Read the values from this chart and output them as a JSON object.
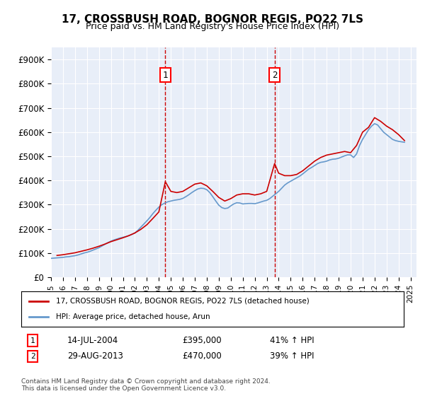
{
  "title": "17, CROSSBUSH ROAD, BOGNOR REGIS, PO22 7LS",
  "subtitle": "Price paid vs. HM Land Registry's House Price Index (HPI)",
  "ylabel_ticks": [
    "£0",
    "£100K",
    "£200K",
    "£300K",
    "£400K",
    "£500K",
    "£600K",
    "£700K",
    "£800K",
    "£900K"
  ],
  "ytick_values": [
    0,
    100000,
    200000,
    300000,
    400000,
    500000,
    600000,
    700000,
    800000,
    900000
  ],
  "ylim": [
    0,
    950000
  ],
  "xlim_start": 1995.0,
  "xlim_end": 2025.5,
  "xtick_years": [
    1995,
    1996,
    1997,
    1998,
    1999,
    2000,
    2001,
    2002,
    2003,
    2004,
    2005,
    2006,
    2007,
    2008,
    2009,
    2010,
    2011,
    2012,
    2013,
    2014,
    2015,
    2016,
    2017,
    2018,
    2019,
    2020,
    2021,
    2022,
    2023,
    2024,
    2025
  ],
  "background_color": "#ffffff",
  "plot_bg_color": "#e8eef8",
  "grid_color": "#ffffff",
  "hpi_color": "#6699cc",
  "sale_color": "#cc0000",
  "marker1_x": 2004.54,
  "marker1_y": 395000,
  "marker2_x": 2013.66,
  "marker2_y": 470000,
  "marker1_label": "1",
  "marker2_label": "2",
  "marker1_date": "14-JUL-2004",
  "marker1_price": "£395,000",
  "marker1_hpi": "41% ↑ HPI",
  "marker2_date": "29-AUG-2013",
  "marker2_price": "£470,000",
  "marker2_hpi": "39% ↑ HPI",
  "legend_sale": "17, CROSSBUSH ROAD, BOGNOR REGIS, PO22 7LS (detached house)",
  "legend_hpi": "HPI: Average price, detached house, Arun",
  "footer": "Contains HM Land Registry data © Crown copyright and database right 2024.\nThis data is licensed under the Open Government Licence v3.0.",
  "hpi_data_x": [
    1995.0,
    1995.25,
    1995.5,
    1995.75,
    1996.0,
    1996.25,
    1996.5,
    1996.75,
    1997.0,
    1997.25,
    1997.5,
    1997.75,
    1998.0,
    1998.25,
    1998.5,
    1998.75,
    1999.0,
    1999.25,
    1999.5,
    1999.75,
    2000.0,
    2000.25,
    2000.5,
    2000.75,
    2001.0,
    2001.25,
    2001.5,
    2001.75,
    2002.0,
    2002.25,
    2002.5,
    2002.75,
    2003.0,
    2003.25,
    2003.5,
    2003.75,
    2004.0,
    2004.25,
    2004.5,
    2004.75,
    2005.0,
    2005.25,
    2005.5,
    2005.75,
    2006.0,
    2006.25,
    2006.5,
    2006.75,
    2007.0,
    2007.25,
    2007.5,
    2007.75,
    2008.0,
    2008.25,
    2008.5,
    2008.75,
    2009.0,
    2009.25,
    2009.5,
    2009.75,
    2010.0,
    2010.25,
    2010.5,
    2010.75,
    2011.0,
    2011.25,
    2011.5,
    2011.75,
    2012.0,
    2012.25,
    2012.5,
    2012.75,
    2013.0,
    2013.25,
    2013.5,
    2013.75,
    2014.0,
    2014.25,
    2014.5,
    2014.75,
    2015.0,
    2015.25,
    2015.5,
    2015.75,
    2016.0,
    2016.25,
    2016.5,
    2016.75,
    2017.0,
    2017.25,
    2017.5,
    2017.75,
    2018.0,
    2018.25,
    2018.5,
    2018.75,
    2019.0,
    2019.25,
    2019.5,
    2019.75,
    2020.0,
    2020.25,
    2020.5,
    2020.75,
    2021.0,
    2021.25,
    2021.5,
    2021.75,
    2022.0,
    2022.25,
    2022.5,
    2022.75,
    2023.0,
    2023.25,
    2023.5,
    2023.75,
    2024.0,
    2024.25,
    2024.5
  ],
  "hpi_data_y": [
    78000,
    79000,
    80000,
    81000,
    82000,
    84000,
    85000,
    87000,
    89000,
    92000,
    96000,
    100000,
    103000,
    107000,
    112000,
    117000,
    122000,
    129000,
    136000,
    143000,
    149000,
    154000,
    158000,
    162000,
    165000,
    168000,
    172000,
    177000,
    183000,
    194000,
    207000,
    220000,
    233000,
    247000,
    263000,
    277000,
    290000,
    300000,
    307000,
    312000,
    315000,
    318000,
    320000,
    322000,
    326000,
    333000,
    341000,
    350000,
    358000,
    365000,
    368000,
    367000,
    362000,
    350000,
    333000,
    315000,
    298000,
    288000,
    284000,
    286000,
    295000,
    303000,
    308000,
    307000,
    303000,
    304000,
    305000,
    305000,
    304000,
    307000,
    311000,
    315000,
    318000,
    325000,
    335000,
    345000,
    355000,
    368000,
    381000,
    390000,
    397000,
    404000,
    411000,
    418000,
    427000,
    437000,
    447000,
    454000,
    462000,
    470000,
    475000,
    477000,
    480000,
    485000,
    488000,
    489000,
    492000,
    497000,
    502000,
    506000,
    506000,
    495000,
    510000,
    545000,
    570000,
    590000,
    610000,
    625000,
    635000,
    630000,
    615000,
    600000,
    590000,
    580000,
    570000,
    565000,
    562000,
    560000,
    558000
  ],
  "sale_data_x": [
    1995.5,
    1996.0,
    1996.5,
    1997.0,
    1997.5,
    1998.0,
    1998.5,
    1999.0,
    1999.5,
    2000.0,
    2000.5,
    2001.0,
    2001.5,
    2002.0,
    2002.5,
    2003.0,
    2003.5,
    2004.0,
    2004.54,
    2005.0,
    2005.5,
    2006.0,
    2006.5,
    2007.0,
    2007.5,
    2008.0,
    2008.5,
    2009.0,
    2009.5,
    2010.0,
    2010.5,
    2011.0,
    2011.5,
    2012.0,
    2012.5,
    2013.0,
    2013.66,
    2014.0,
    2014.5,
    2015.0,
    2015.5,
    2016.0,
    2016.5,
    2017.0,
    2017.5,
    2018.0,
    2018.5,
    2019.0,
    2019.5,
    2020.0,
    2020.5,
    2021.0,
    2021.5,
    2022.0,
    2022.5,
    2023.0,
    2023.5,
    2024.0,
    2024.5
  ],
  "sale_data_y": [
    90000,
    93000,
    97000,
    101000,
    107000,
    113000,
    120000,
    128000,
    137000,
    147000,
    155000,
    163000,
    172000,
    183000,
    198000,
    217000,
    243000,
    270000,
    395000,
    355000,
    350000,
    355000,
    370000,
    385000,
    390000,
    378000,
    355000,
    330000,
    315000,
    325000,
    340000,
    345000,
    345000,
    340000,
    345000,
    355000,
    470000,
    430000,
    420000,
    420000,
    425000,
    440000,
    460000,
    480000,
    495000,
    505000,
    510000,
    515000,
    520000,
    515000,
    545000,
    600000,
    620000,
    660000,
    645000,
    625000,
    610000,
    590000,
    565000
  ]
}
